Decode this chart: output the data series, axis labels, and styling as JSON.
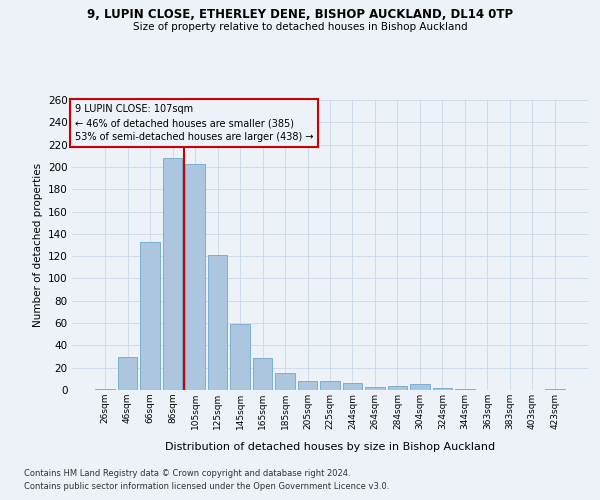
{
  "title1": "9, LUPIN CLOSE, ETHERLEY DENE, BISHOP AUCKLAND, DL14 0TP",
  "title2": "Size of property relative to detached houses in Bishop Auckland",
  "xlabel": "Distribution of detached houses by size in Bishop Auckland",
  "ylabel": "Number of detached properties",
  "footer1": "Contains HM Land Registry data © Crown copyright and database right 2024.",
  "footer2": "Contains public sector information licensed under the Open Government Licence v3.0.",
  "annotation_line1": "9 LUPIN CLOSE: 107sqm",
  "annotation_line2": "← 46% of detached houses are smaller (385)",
  "annotation_line3": "53% of semi-detached houses are larger (438) →",
  "categories": [
    "26sqm",
    "46sqm",
    "66sqm",
    "86sqm",
    "105sqm",
    "125sqm",
    "145sqm",
    "165sqm",
    "185sqm",
    "205sqm",
    "225sqm",
    "244sqm",
    "264sqm",
    "284sqm",
    "304sqm",
    "324sqm",
    "344sqm",
    "363sqm",
    "383sqm",
    "403sqm",
    "423sqm"
  ],
  "values": [
    1,
    30,
    133,
    208,
    203,
    121,
    59,
    29,
    15,
    8,
    8,
    6,
    3,
    4,
    5,
    2,
    1,
    0,
    0,
    0,
    1
  ],
  "bar_color": "#adc6e0",
  "bar_edge_color": "#6aaad4",
  "vline_color": "#cc0000",
  "vline_index": 3.5,
  "annotation_box_edge_color": "#cc0000",
  "grid_color": "#c8d8ea",
  "background_color": "#edf2f8",
  "ylim_max": 260,
  "yticks": [
    0,
    20,
    40,
    60,
    80,
    100,
    120,
    140,
    160,
    180,
    200,
    220,
    240,
    260
  ]
}
